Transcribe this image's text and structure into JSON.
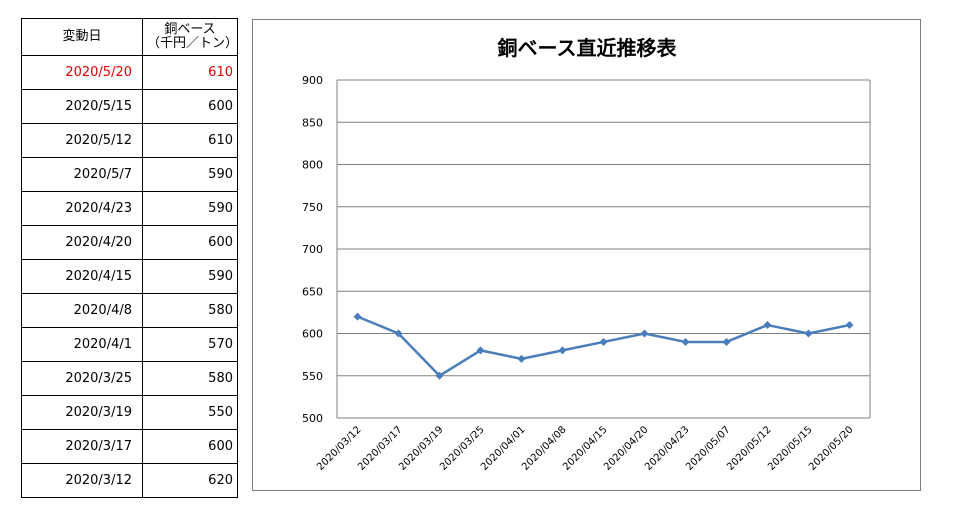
{
  "table": {
    "header": {
      "date": "変動日",
      "price_line1": "銅ベース",
      "price_line2": "（千円／トン）"
    },
    "rows": [
      {
        "date": "2020/5/20",
        "value": "610",
        "highlight": true
      },
      {
        "date": "2020/5/15",
        "value": "600"
      },
      {
        "date": "2020/5/12",
        "value": "610"
      },
      {
        "date": "2020/5/7",
        "value": "590"
      },
      {
        "date": "2020/4/23",
        "value": "590"
      },
      {
        "date": "2020/4/20",
        "value": "600"
      },
      {
        "date": "2020/4/15",
        "value": "590"
      },
      {
        "date": "2020/4/8",
        "value": "580"
      },
      {
        "date": "2020/4/1",
        "value": "570"
      },
      {
        "date": "2020/3/25",
        "value": "580"
      },
      {
        "date": "2020/3/19",
        "value": "550"
      },
      {
        "date": "2020/3/17",
        "value": "600"
      },
      {
        "date": "2020/3/12",
        "value": "620"
      }
    ],
    "highlight_color": "#e00000"
  },
  "chart_data": {
    "type": "line",
    "title": "銅ベース直近推移表",
    "xlabel": "",
    "ylabel": "",
    "categories": [
      "2020/03/12",
      "2020/03/17",
      "2020/03/19",
      "2020/03/25",
      "2020/04/01",
      "2020/04/08",
      "2020/04/15",
      "2020/04/20",
      "2020/04/23",
      "2020/05/07",
      "2020/05/12",
      "2020/05/15",
      "2020/05/20"
    ],
    "values": [
      620,
      600,
      550,
      580,
      570,
      580,
      590,
      600,
      590,
      590,
      610,
      600,
      610
    ],
    "ylim": [
      500,
      900
    ],
    "yticks": [
      500,
      550,
      600,
      650,
      700,
      750,
      800,
      850,
      900
    ],
    "grid": true,
    "legend": "none",
    "line_color": "#4a7ebb",
    "marker": "diamond"
  }
}
